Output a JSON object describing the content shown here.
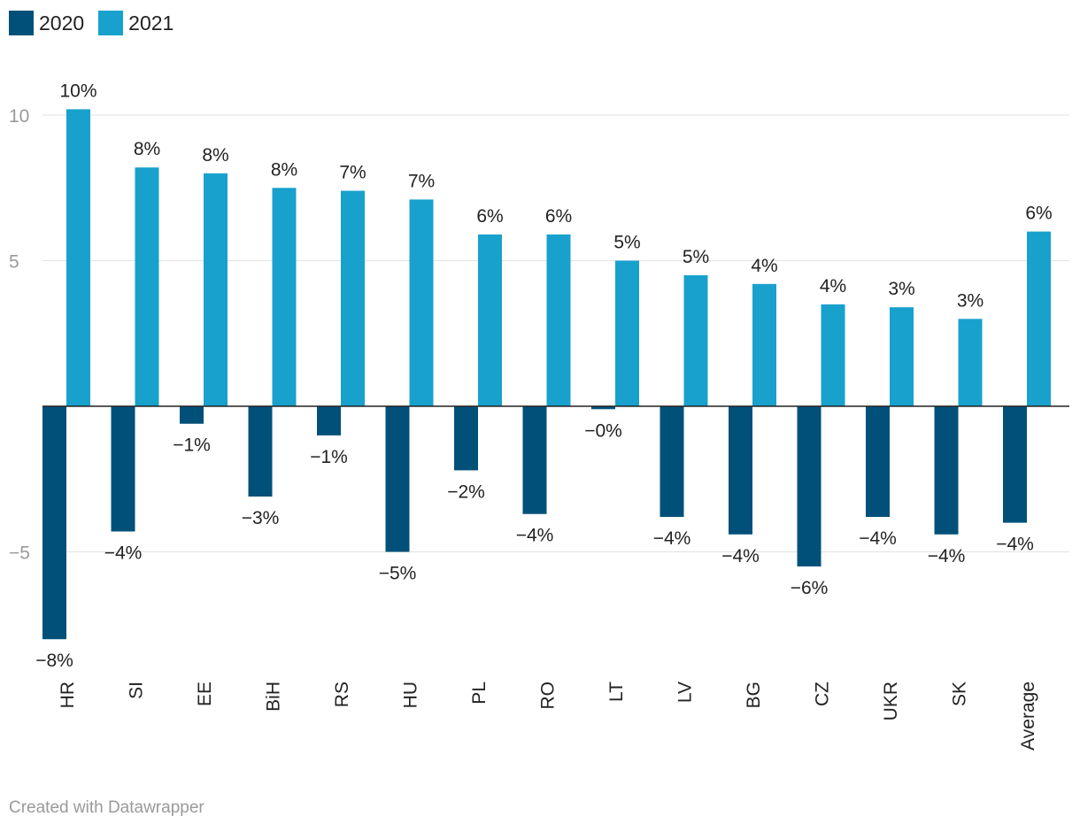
{
  "legend": [
    {
      "label": "2020",
      "color": "#00507a"
    },
    {
      "label": "2021",
      "color": "#18a1cd"
    }
  ],
  "footer": "Created with Datawrapper",
  "chart_data": {
    "type": "bar",
    "title": "",
    "xlabel": "",
    "ylabel": "",
    "ylim": [
      -8.0,
      10.2
    ],
    "yticks": [
      10,
      5,
      -5
    ],
    "ytick_labels": [
      "10",
      "5",
      "−5"
    ],
    "grid": true,
    "legend_position": "top-left",
    "categories": [
      "HR",
      "SI",
      "EE",
      "BiH",
      "RS",
      "HU",
      "PL",
      "RO",
      "LT",
      "LV",
      "BG",
      "CZ",
      "UKR",
      "SK",
      "Average"
    ],
    "series": [
      {
        "name": "2020",
        "color": "#00507a",
        "values": [
          -8.0,
          -4.3,
          -0.6,
          -3.1,
          -1.0,
          -5.0,
          -2.2,
          -3.7,
          -0.1,
          -3.8,
          -4.4,
          -5.5,
          -3.8,
          -4.4,
          -4.0
        ],
        "labels": [
          "−8%",
          "−4%",
          "−1%",
          "−3%",
          "−1%",
          "−5%",
          "−2%",
          "−4%",
          "−0%",
          "−4%",
          "−4%",
          "−6%",
          "−4%",
          "−4%",
          "−4%"
        ]
      },
      {
        "name": "2021",
        "color": "#18a1cd",
        "values": [
          10.2,
          8.2,
          8.0,
          7.5,
          7.4,
          7.1,
          5.9,
          5.9,
          5.0,
          4.5,
          4.2,
          3.5,
          3.4,
          3.0,
          6.0
        ],
        "labels": [
          "10%",
          "8%",
          "8%",
          "8%",
          "7%",
          "7%",
          "6%",
          "6%",
          "5%",
          "5%",
          "4%",
          "4%",
          "3%",
          "3%",
          "6%"
        ]
      }
    ]
  }
}
